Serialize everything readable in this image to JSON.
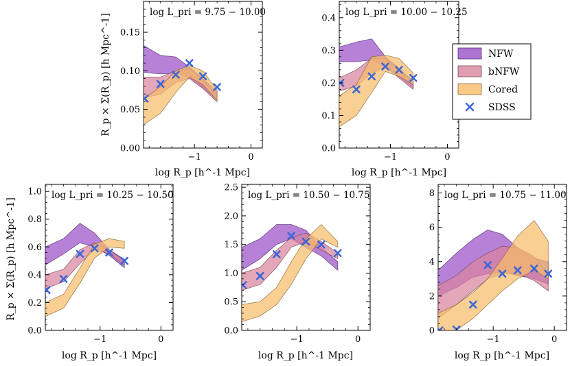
{
  "figure": {
    "xlabel": "log R_p [h^-1 Mpc]",
    "ylabel": "R_p × Σ(R_p) [h Mpc^-1]"
  },
  "colors": {
    "NFW": "#9b51c8",
    "bNFW": "#d9849e",
    "Cored": "#f7bc6a",
    "SDSS": "#3d66d8"
  },
  "legend": {
    "entries": [
      {
        "key": "NFW",
        "label": "NFW"
      },
      {
        "key": "bNFW",
        "label": "bNFW"
      },
      {
        "key": "Cored",
        "label": "Cored"
      },
      {
        "key": "SDSS",
        "label": "SDSS"
      }
    ]
  },
  "chart_data": [
    {
      "type": "area",
      "title": "log L_pri = 9.75 − 10.00",
      "xlim": [
        -1.9,
        0.2
      ],
      "ylim": [
        0,
        0.19
      ],
      "xticks": [
        -1,
        0
      ],
      "yticks": [
        0,
        0.05,
        0.1,
        0.15
      ],
      "ytick_labels": [
        "0.00",
        "0.05",
        "0.10",
        "0.15"
      ],
      "x": [
        -1.9,
        -1.6,
        -1.33,
        -1.09,
        -0.85,
        -0.6
      ],
      "bands": {
        "NFW": {
          "upper": [
            0.133,
            0.12,
            0.118,
            0.105,
            0.09,
            0.073
          ],
          "lower": [
            0.098,
            0.096,
            0.097,
            0.092,
            0.078,
            0.063
          ]
        },
        "bNFW": {
          "upper": [
            0.092,
            0.092,
            0.1,
            0.103,
            0.088,
            0.067
          ],
          "lower": [
            0.065,
            0.07,
            0.085,
            0.09,
            0.077,
            0.06
          ]
        },
        "Cored": {
          "upper": [
            0.063,
            0.08,
            0.1,
            0.107,
            0.1,
            0.075
          ],
          "lower": [
            0.03,
            0.045,
            0.072,
            0.092,
            0.082,
            0.062
          ]
        }
      },
      "sdss": {
        "x": [
          -1.88,
          -1.6,
          -1.33,
          -1.09,
          -0.85,
          -0.6
        ],
        "y": [
          0.064,
          0.083,
          0.095,
          0.11,
          0.093,
          0.079
        ]
      }
    },
    {
      "type": "area",
      "title": "log L_pri = 10.00 − 10.25",
      "xlim": [
        -1.9,
        0.2
      ],
      "ylim": [
        0,
        0.45
      ],
      "xticks": [
        -1,
        0
      ],
      "yticks": [
        0,
        0.1,
        0.2,
        0.3,
        0.4
      ],
      "ytick_labels": [
        "0.0",
        "0.1",
        "0.2",
        "0.3",
        "0.4"
      ],
      "x": [
        -1.9,
        -1.6,
        -1.33,
        -1.09,
        -0.85,
        -0.6
      ],
      "bands": {
        "NFW": {
          "upper": [
            0.31,
            0.325,
            0.335,
            0.28,
            0.245,
            0.205
          ],
          "lower": [
            0.265,
            0.265,
            0.27,
            0.25,
            0.22,
            0.185
          ]
        },
        "bNFW": {
          "upper": [
            0.215,
            0.24,
            0.275,
            0.275,
            0.24,
            0.2
          ],
          "lower": [
            0.175,
            0.19,
            0.23,
            0.25,
            0.215,
            0.18
          ]
        },
        "Cored": {
          "upper": [
            0.16,
            0.195,
            0.28,
            0.285,
            0.275,
            0.23
          ],
          "lower": [
            0.065,
            0.1,
            0.17,
            0.235,
            0.22,
            0.195
          ]
        }
      },
      "sdss": {
        "x": [
          -1.88,
          -1.6,
          -1.33,
          -1.09,
          -0.85,
          -0.6
        ],
        "y": [
          0.2,
          0.18,
          0.22,
          0.25,
          0.24,
          0.215
        ]
      }
    },
    {
      "type": "area",
      "title": "log L_pri = 10.25 − 10.50",
      "xlim": [
        -1.9,
        0.2
      ],
      "ylim": [
        0,
        1.05
      ],
      "xticks": [
        -1,
        0
      ],
      "yticks": [
        0,
        0.2,
        0.4,
        0.6,
        0.8,
        1.0
      ],
      "ytick_labels": [
        "0.0",
        "0.2",
        "0.4",
        "0.6",
        "0.8",
        "1.0"
      ],
      "x": [
        -1.9,
        -1.6,
        -1.33,
        -1.09,
        -0.85,
        -0.6
      ],
      "bands": {
        "NFW": {
          "upper": [
            0.6,
            0.66,
            0.77,
            0.7,
            0.58,
            0.51
          ],
          "lower": [
            0.47,
            0.55,
            0.63,
            0.6,
            0.54,
            0.45
          ]
        },
        "bNFW": {
          "upper": [
            0.4,
            0.44,
            0.58,
            0.63,
            0.58,
            0.5
          ],
          "lower": [
            0.3,
            0.35,
            0.48,
            0.58,
            0.55,
            0.47
          ]
        },
        "Cored": {
          "upper": [
            0.2,
            0.26,
            0.45,
            0.62,
            0.66,
            0.64
          ],
          "lower": [
            0.1,
            0.16,
            0.34,
            0.52,
            0.6,
            0.59
          ]
        }
      },
      "sdss": {
        "x": [
          -1.88,
          -1.6,
          -1.33,
          -1.09,
          -0.85,
          -0.6
        ],
        "y": [
          0.29,
          0.37,
          0.55,
          0.59,
          0.56,
          0.5
        ]
      }
    },
    {
      "type": "area",
      "title": "log L_pri = 10.50 − 10.75",
      "xlim": [
        -1.9,
        0.2
      ],
      "ylim": [
        0,
        2.55
      ],
      "xticks": [
        -1,
        0
      ],
      "yticks": [
        0,
        0.5,
        1.0,
        1.5,
        2.0,
        2.5
      ],
      "ytick_labels": [
        "0.0",
        "0.5",
        "1.0",
        "1.5",
        "2.0",
        "2.5"
      ],
      "x": [
        -1.9,
        -1.6,
        -1.33,
        -1.09,
        -0.85,
        -0.6,
        -0.33
      ],
      "bands": {
        "NFW": {
          "upper": [
            1.45,
            1.6,
            1.85,
            1.85,
            1.75,
            1.45,
            1.2
          ],
          "lower": [
            1.05,
            1.25,
            1.5,
            1.6,
            1.45,
            1.3,
            1.05
          ]
        },
        "bNFW": {
          "upper": [
            1.0,
            1.1,
            1.4,
            1.62,
            1.7,
            1.55,
            1.35
          ],
          "lower": [
            0.7,
            0.8,
            1.1,
            1.45,
            1.55,
            1.4,
            1.25
          ]
        },
        "Cored": {
          "upper": [
            0.45,
            0.5,
            0.75,
            1.2,
            1.6,
            1.85,
            1.55
          ],
          "lower": [
            0.15,
            0.25,
            0.45,
            0.8,
            1.25,
            1.6,
            1.45
          ]
        }
      },
      "sdss": {
        "x": [
          -1.88,
          -1.6,
          -1.33,
          -1.09,
          -0.85,
          -0.6,
          -0.33
        ],
        "y": [
          0.79,
          0.95,
          1.33,
          1.65,
          1.55,
          1.5,
          1.35
        ]
      }
    },
    {
      "type": "area",
      "title": "log L_pri = 10.75 − 11.00",
      "xlim": [
        -1.9,
        0.2
      ],
      "ylim": [
        0,
        8.5
      ],
      "xticks": [
        -1,
        0
      ],
      "yticks": [
        0,
        2,
        4,
        6,
        8
      ],
      "ytick_labels": [
        "0",
        "2",
        "4",
        "6",
        "8"
      ],
      "x": [
        -1.9,
        -1.6,
        -1.33,
        -1.09,
        -0.85,
        -0.6,
        -0.33,
        -0.1
      ],
      "bands": {
        "NFW": {
          "upper": [
            3.5,
            4.5,
            5.3,
            5.85,
            5.6,
            4.8,
            4.2,
            4.0
          ],
          "lower": [
            2.0,
            2.5,
            3.1,
            3.3,
            3.4,
            3.2,
            3.0,
            2.7
          ]
        },
        "bNFW": {
          "upper": [
            2.6,
            3.2,
            4.0,
            4.5,
            4.9,
            4.8,
            4.3,
            3.2
          ],
          "lower": [
            0.7,
            1.5,
            2.3,
            3.0,
            3.3,
            3.3,
            2.9,
            2.3
          ]
        },
        "Cored": {
          "upper": [
            1.0,
            1.5,
            2.2,
            3.0,
            4.2,
            5.5,
            6.4,
            5.2
          ],
          "lower": [
            0.0,
            0.0,
            0.7,
            1.5,
            2.3,
            3.0,
            3.5,
            3.0
          ]
        }
      },
      "sdss": {
        "x": [
          -1.88,
          -1.6,
          -1.33,
          -1.09,
          -0.85,
          -0.6,
          -0.33,
          -0.1
        ],
        "y": [
          0.0,
          0.05,
          1.5,
          3.8,
          3.3,
          3.5,
          3.6,
          3.3
        ]
      }
    }
  ]
}
